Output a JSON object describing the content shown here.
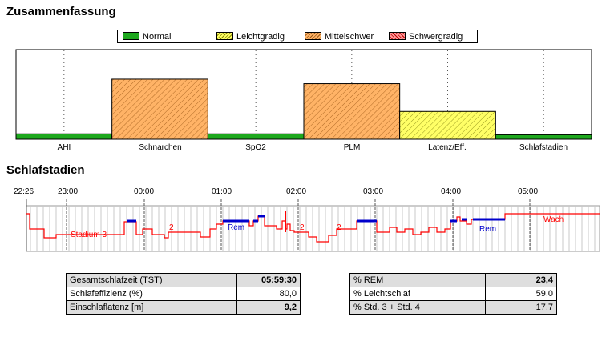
{
  "summary": {
    "title": "Zusammenfassung",
    "legend": [
      {
        "label": "Normal",
        "color": "#1ea81e",
        "pattern": "solid"
      },
      {
        "label": "Leichtgradig",
        "color": "#ffff66",
        "pattern": "hatch"
      },
      {
        "label": "Mittelschwer",
        "color": "#ffb366",
        "pattern": "hatch"
      },
      {
        "label": "Schwergradig",
        "color": "#ff9999",
        "pattern": "cross"
      }
    ]
  },
  "chart_data": {
    "type": "bar",
    "categories": [
      "AHI",
      "Schnarchen",
      "SpO2",
      "PLM",
      "Latenz/Eff.",
      "Schlafstadien"
    ],
    "values": [
      6,
      67,
      6,
      62,
      31,
      5
    ],
    "severity": [
      "Normal",
      "Mittelschwer",
      "Normal",
      "Mittelschwer",
      "Leichtgradig",
      "Normal"
    ],
    "ylim": [
      0,
      100
    ]
  },
  "hypnogram": {
    "title": "Schlafstadien",
    "start_time": "22:26",
    "ticks": [
      "23:00",
      "00:00",
      "01:00",
      "02:00",
      "03:00",
      "04:00",
      "05:00"
    ],
    "labels": [
      "Stadium 3",
      "2",
      "Rem",
      "2",
      "2",
      "Rem",
      "Wach"
    ],
    "colors": {
      "nrem": "#ff0000",
      "rem": "#0000cc"
    }
  },
  "stats": {
    "left": [
      {
        "label": "Gesamtschlafzeit (TST)",
        "value": "05:59:30"
      },
      {
        "label": "Schlafeffizienz (%)",
        "value": "80,0"
      },
      {
        "label": "Einschlaflatenz [m]",
        "value": "9,2"
      }
    ],
    "right": [
      {
        "label": "% REM",
        "value": "23,4"
      },
      {
        "label": "% Leichtschlaf",
        "value": "59,0"
      },
      {
        "label": "% Std. 3 + Std. 4",
        "value": "17,7"
      }
    ]
  }
}
